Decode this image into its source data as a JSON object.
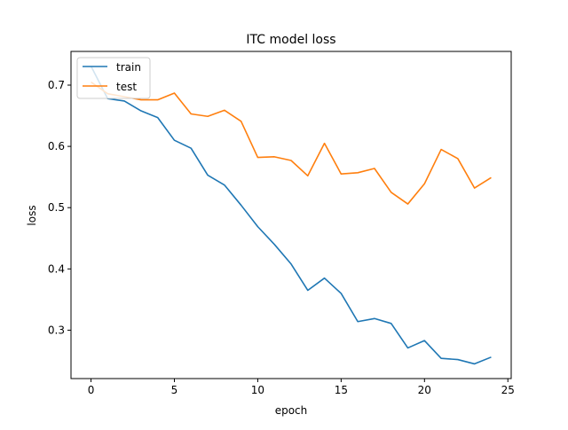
{
  "chart_data": {
    "type": "line",
    "title": "ITC model loss",
    "xlabel": "epoch",
    "ylabel": "loss",
    "x": [
      0,
      1,
      2,
      3,
      4,
      5,
      6,
      7,
      8,
      9,
      10,
      11,
      12,
      13,
      14,
      15,
      16,
      17,
      18,
      19,
      20,
      21,
      22,
      23,
      24
    ],
    "series": [
      {
        "name": "train",
        "color": "#1f77b4",
        "values": [
          0.731,
          0.678,
          0.674,
          0.658,
          0.647,
          0.61,
          0.597,
          0.553,
          0.537,
          0.504,
          0.469,
          0.44,
          0.408,
          0.365,
          0.385,
          0.36,
          0.314,
          0.319,
          0.311,
          0.271,
          0.283,
          0.254,
          0.252,
          0.245,
          0.256
        ]
      },
      {
        "name": "test",
        "color": "#ff7f0e",
        "values": [
          0.705,
          0.686,
          0.681,
          0.676,
          0.676,
          0.687,
          0.653,
          0.649,
          0.659,
          0.641,
          0.582,
          0.583,
          0.577,
          0.552,
          0.605,
          0.555,
          0.557,
          0.564,
          0.525,
          0.506,
          0.539,
          0.595,
          0.58,
          0.532,
          0.549
        ]
      }
    ],
    "xlim": [
      -1.2,
      25.2
    ],
    "ylim": [
      0.221,
      0.755
    ],
    "xticks": [
      0,
      5,
      10,
      15,
      20,
      25
    ],
    "yticks": [
      0.3,
      0.4,
      0.5,
      0.6,
      0.7
    ],
    "xtick_labels": [
      "0",
      "5",
      "10",
      "15",
      "20",
      "25"
    ],
    "ytick_labels": [
      "0.3",
      "0.4",
      "0.5",
      "0.6",
      "0.7"
    ],
    "grid": false,
    "legend_position": "top-left"
  }
}
